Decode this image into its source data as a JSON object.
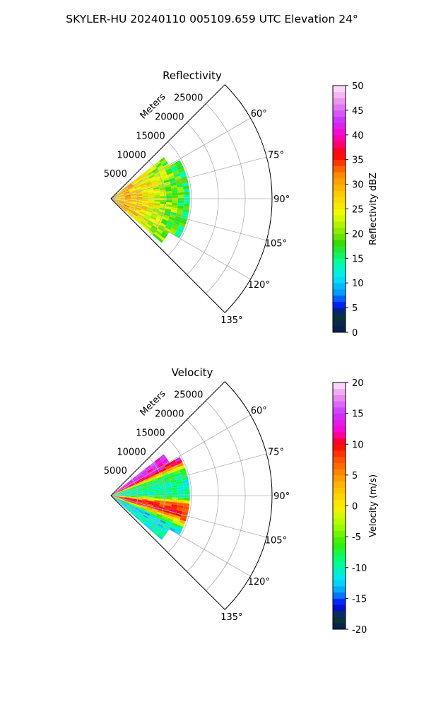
{
  "suptitle": "SKYLER-HU  20240110  005109.659 UTC Elevation 24°",
  "colors": {
    "background": "#ffffff",
    "axis": "#000000",
    "grid": "#b0b0b0"
  },
  "chart_data": [
    {
      "type": "heatmap",
      "projection": "polar-sector",
      "title": "Reflectivity",
      "range_label": "Meters",
      "range_ticks": [
        5000,
        10000,
        15000,
        20000,
        25000
      ],
      "range_max": 30000,
      "azimuth_ticks": [
        60,
        75,
        90,
        105,
        120,
        135
      ],
      "azimuth_tick_labels": [
        "60°",
        "75°",
        "90°",
        "105°",
        "120°",
        "135°"
      ],
      "azimuth_range": [
        45,
        135
      ],
      "data_extent_range": 14000,
      "grid": true,
      "colorbar": {
        "label": "Reflectivity dBZ",
        "range": [
          0,
          50
        ],
        "ticks": [
          0,
          5,
          10,
          15,
          20,
          25,
          30,
          35,
          40,
          45,
          50
        ],
        "stops": [
          [
            0,
            "#0a1a55"
          ],
          [
            4,
            "#0a3a30"
          ],
          [
            5,
            "#0000ff"
          ],
          [
            8,
            "#0099ff"
          ],
          [
            11,
            "#00e5ff"
          ],
          [
            14,
            "#00ffaa"
          ],
          [
            18,
            "#33dd00"
          ],
          [
            21,
            "#99ee00"
          ],
          [
            24,
            "#eeff00"
          ],
          [
            28,
            "#ffcc00"
          ],
          [
            32,
            "#ff8800"
          ],
          [
            36,
            "#ff0000"
          ],
          [
            40,
            "#ff00cc"
          ],
          [
            43,
            "#cc33ff"
          ],
          [
            47,
            "#ee99ee"
          ],
          [
            50,
            "#ffe6ff"
          ]
        ]
      },
      "value_profile": {
        "description_free": false,
        "by_range": [
          [
            0,
            28
          ],
          [
            3000,
            30
          ],
          [
            6000,
            26
          ],
          [
            9000,
            22
          ],
          [
            12000,
            19
          ],
          [
            14000,
            15
          ]
        ]
      }
    },
    {
      "type": "heatmap",
      "projection": "polar-sector",
      "title": "Velocity",
      "range_label": "Meters",
      "range_ticks": [
        5000,
        10000,
        15000,
        20000,
        25000
      ],
      "range_max": 30000,
      "azimuth_ticks": [
        60,
        75,
        90,
        105,
        120,
        135
      ],
      "azimuth_tick_labels": [
        "60°",
        "75°",
        "90°",
        "105°",
        "120°",
        "135°"
      ],
      "azimuth_range": [
        45,
        135
      ],
      "data_extent_range": 14000,
      "grid": true,
      "colorbar": {
        "label": "Velocity (m/s)",
        "range": [
          -20,
          20
        ],
        "ticks": [
          -20,
          -15,
          -10,
          -5,
          0,
          5,
          10,
          15,
          20
        ],
        "stops": [
          [
            -20,
            "#0a1a55"
          ],
          [
            -18,
            "#0a3a30"
          ],
          [
            -16,
            "#0000ff"
          ],
          [
            -14,
            "#0099ff"
          ],
          [
            -12,
            "#00e5ff"
          ],
          [
            -9,
            "#00ff88"
          ],
          [
            -6,
            "#33ee00"
          ],
          [
            -3,
            "#aaff00"
          ],
          [
            0,
            "#ffee00"
          ],
          [
            4,
            "#ffaa00"
          ],
          [
            8,
            "#ff4400"
          ],
          [
            10,
            "#ff0000"
          ],
          [
            12,
            "#ff00cc"
          ],
          [
            15,
            "#cc33ff"
          ],
          [
            18,
            "#ee99ee"
          ],
          [
            20,
            "#ffe6ff"
          ]
        ]
      },
      "value_profile": {
        "by_azimuth": [
          [
            52,
            14
          ],
          [
            62,
            12
          ],
          [
            70,
            -8
          ],
          [
            80,
            -10
          ],
          [
            90,
            -9
          ],
          [
            97,
            8
          ],
          [
            105,
            10
          ],
          [
            115,
            -12
          ],
          [
            125,
            -10
          ],
          [
            135,
            -10
          ]
        ]
      }
    }
  ]
}
